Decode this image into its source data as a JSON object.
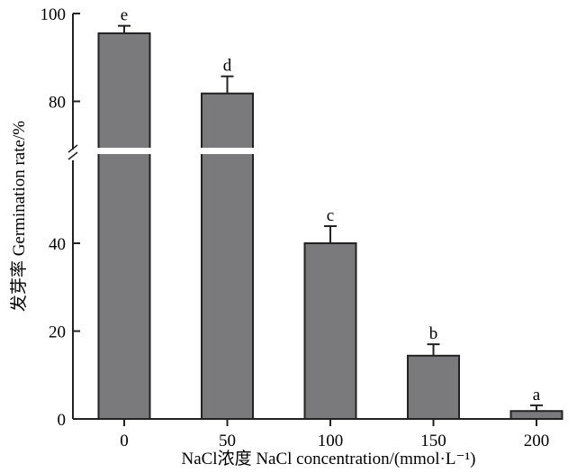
{
  "chart_data": {
    "type": "bar",
    "title": "",
    "xlabel": "NaCl浓度 NaCl concentration/(mmol·L⁻¹)",
    "ylabel": "发芽率 Germination rate/%",
    "categories": [
      "0",
      "50",
      "100",
      "150",
      "200"
    ],
    "values": [
      95.5,
      81.8,
      40.0,
      14.4,
      1.8
    ],
    "error_upper": [
      97.2,
      85.7,
      43.9,
      17.0,
      3.1
    ],
    "significance_labels": [
      "e",
      "d",
      "c",
      "b",
      "a"
    ],
    "ylim": [
      0,
      100
    ],
    "axis_break": [
      59,
      69
    ],
    "yticks": [
      0,
      20,
      40,
      80,
      100
    ],
    "grid": false,
    "bar_color": "#7a7a7c"
  }
}
